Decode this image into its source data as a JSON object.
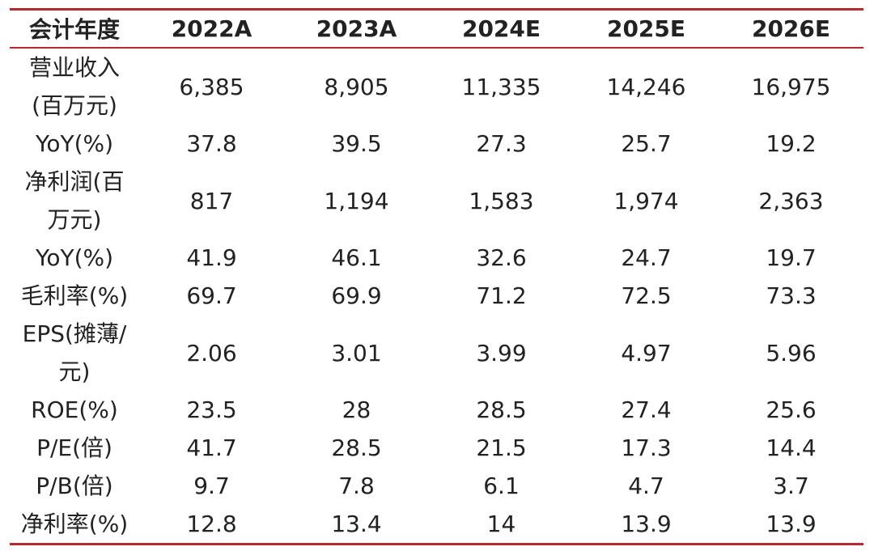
{
  "table": {
    "headers": [
      "会计年度",
      "2022A",
      "2023A",
      "2024E",
      "2025E",
      "2026E"
    ],
    "rows": [
      {
        "label": "营业收入\n(百万元)",
        "values": [
          "6,385",
          "8,905",
          "11,335",
          "14,246",
          "16,975"
        ]
      },
      {
        "label": "YoY(%)",
        "values": [
          "37.8",
          "39.5",
          "27.3",
          "25.7",
          "19.2"
        ]
      },
      {
        "label": "净利润(百\n万元)",
        "values": [
          "817",
          "1,194",
          "1,583",
          "1,974",
          "2,363"
        ]
      },
      {
        "label": "YoY(%)",
        "values": [
          "41.9",
          "46.1",
          "32.6",
          "24.7",
          "19.7"
        ]
      },
      {
        "label": "毛利率(%)",
        "values": [
          "69.7",
          "69.9",
          "71.2",
          "72.5",
          "73.3"
        ]
      },
      {
        "label": "EPS(摊薄/\n元)",
        "values": [
          "2.06",
          "3.01",
          "3.99",
          "4.97",
          "5.96"
        ]
      },
      {
        "label": "ROE(%)",
        "values": [
          "23.5",
          "28",
          "28.5",
          "27.4",
          "25.6"
        ]
      },
      {
        "label": "P/E(倍)",
        "values": [
          "41.7",
          "28.5",
          "21.5",
          "17.3",
          "14.4"
        ]
      },
      {
        "label": "P/B(倍)",
        "values": [
          "9.7",
          "7.8",
          "6.1",
          "4.7",
          "3.7"
        ]
      },
      {
        "label": "净利率(%)",
        "values": [
          "12.8",
          "13.4",
          "14",
          "13.9",
          "13.9"
        ]
      }
    ]
  },
  "colors": {
    "rule": "#b5292f",
    "text": "#222222"
  }
}
